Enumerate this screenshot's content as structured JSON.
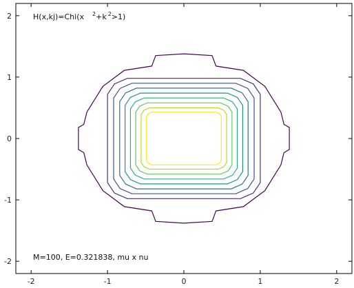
{
  "chart_data": {
    "type": "contour",
    "title": "",
    "xlabel": "",
    "ylabel": "",
    "xlim": [
      -2.2,
      2.2
    ],
    "ylim": [
      -2.2,
      2.2
    ],
    "x_ticks": [
      "-2",
      "-1",
      "0",
      "1",
      "2"
    ],
    "y_ticks": [
      "-2",
      "-1",
      "0",
      "1",
      "2"
    ],
    "grid": false,
    "annotation_top": {
      "prefix": "H(x,kj)=Chi(x",
      "sup1": "2",
      "middle": "+k",
      "sup2": "2",
      "suffix": ">1)"
    },
    "annotation_bottom": "M=100, E=0.321838, mu x nu",
    "outer_contour": {
      "color": "#440154",
      "points": [
        [
          -0.37,
          1.35
        ],
        [
          0.0,
          1.38
        ],
        [
          0.37,
          1.35
        ],
        [
          0.42,
          1.18
        ],
        [
          0.78,
          1.11
        ],
        [
          1.06,
          0.85
        ],
        [
          1.27,
          0.43
        ],
        [
          1.31,
          0.23
        ],
        [
          1.38,
          0.18
        ],
        [
          1.38,
          -0.18
        ],
        [
          1.31,
          -0.23
        ],
        [
          1.27,
          -0.43
        ],
        [
          1.06,
          -0.85
        ],
        [
          0.78,
          -1.11
        ],
        [
          0.42,
          -1.18
        ],
        [
          0.37,
          -1.35
        ],
        [
          0.0,
          -1.38
        ],
        [
          -0.37,
          -1.35
        ],
        [
          -0.42,
          -1.18
        ],
        [
          -0.78,
          -1.11
        ],
        [
          -1.06,
          -0.85
        ],
        [
          -1.27,
          -0.43
        ],
        [
          -1.31,
          -0.23
        ],
        [
          -1.38,
          -0.18
        ],
        [
          -1.38,
          0.18
        ],
        [
          -1.31,
          0.23
        ],
        [
          -1.27,
          0.43
        ],
        [
          -1.06,
          0.85
        ],
        [
          -0.78,
          1.11
        ],
        [
          -0.42,
          1.18
        ]
      ]
    },
    "inner_contours": [
      {
        "color": "#472d7b",
        "hx": 1.0,
        "hy": 0.98,
        "cut": 0.26
      },
      {
        "color": "#3b528b",
        "hx": 0.92,
        "hy": 0.9,
        "cut": 0.24
      },
      {
        "color": "#2c728e",
        "hx": 0.84,
        "hy": 0.82,
        "cut": 0.22
      },
      {
        "color": "#21918c",
        "hx": 0.77,
        "hy": 0.74,
        "cut": 0.2
      },
      {
        "color": "#28ae80",
        "hx": 0.7,
        "hy": 0.66,
        "cut": 0.18
      },
      {
        "color": "#5ec962",
        "hx": 0.63,
        "hy": 0.58,
        "cut": 0.15
      },
      {
        "color": "#addc30",
        "hx": 0.56,
        "hy": 0.5,
        "cut": 0.11
      },
      {
        "color": "#fde725",
        "hx": 0.49,
        "hy": 0.43,
        "cut": 0.07
      }
    ]
  }
}
